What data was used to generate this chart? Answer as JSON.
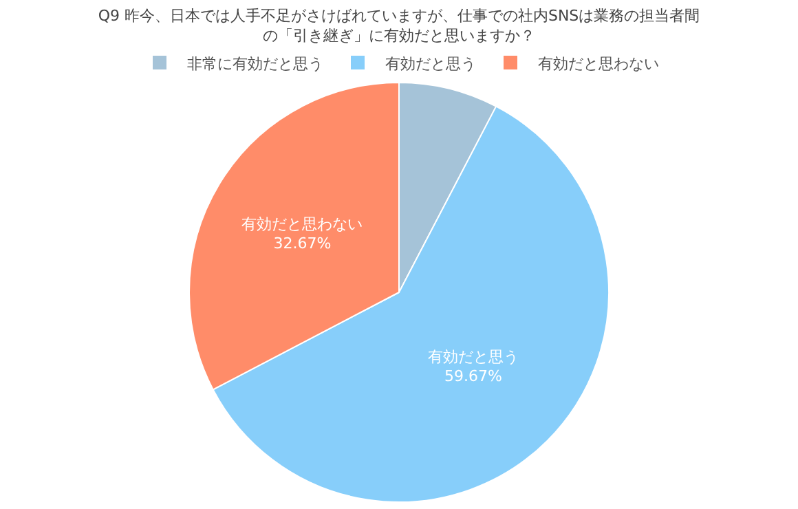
{
  "chart_data": {
    "type": "pie",
    "title": "Q9 昨今、日本では人手不足がさけばれていますが、仕事での社内SNSは業務の担当者間の「引き継ぎ」に有効だと思いますか？",
    "categories": [
      "非常に有効だと思う",
      "有効だと思う",
      "有効だと思わない"
    ],
    "values": [
      7.66,
      59.67,
      32.67
    ],
    "colors": [
      "#a5c3d8",
      "#87cefa",
      "#ff8c69"
    ],
    "value_labels": [
      null,
      "59.67%",
      "32.67%"
    ],
    "legend": "top"
  }
}
